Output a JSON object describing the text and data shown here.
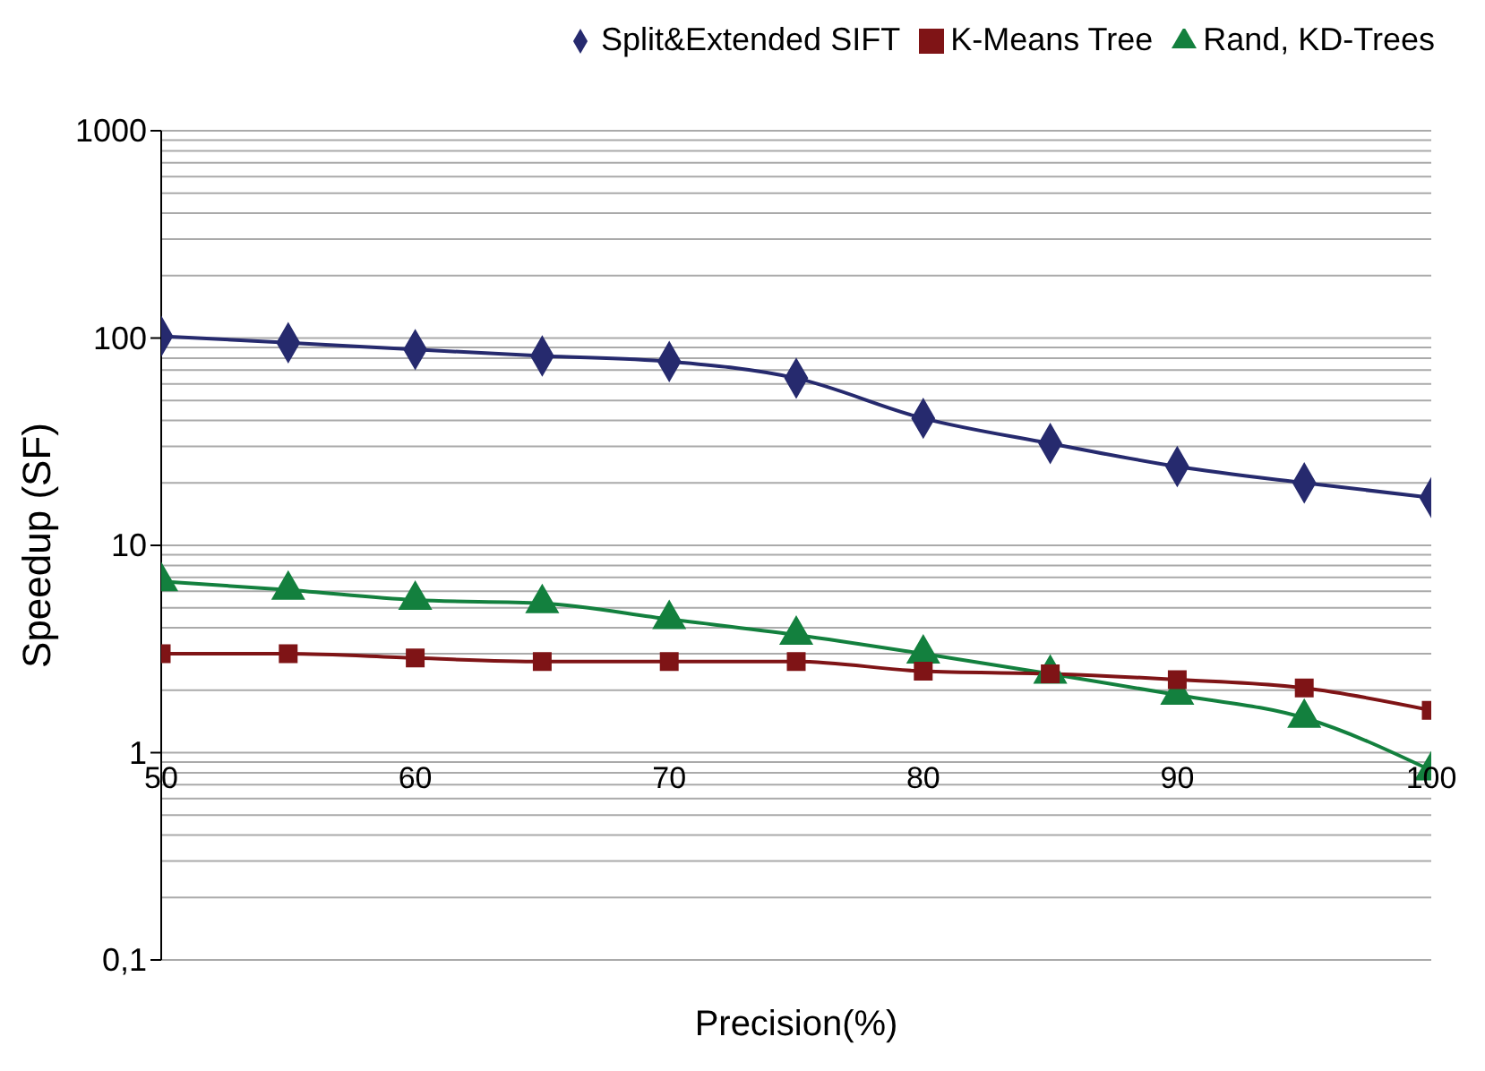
{
  "chart_data": {
    "type": "line",
    "xlabel": "Precision(%)",
    "ylabel": "Speedup (SF)",
    "log": "y",
    "grid": "y",
    "legend": "top right",
    "line_style": "solid",
    "x": [
      50,
      55,
      60,
      65,
      70,
      75,
      80,
      85,
      90,
      95,
      100
    ],
    "xlim": [
      50,
      100
    ],
    "xticks": [
      50,
      60,
      70,
      80,
      90,
      100
    ],
    "ylim": [
      0.1,
      1000
    ],
    "yticks": [
      {
        "value": 0.1,
        "label": "0,1"
      },
      {
        "value": 0.2,
        "label": null
      },
      {
        "value": 0.3,
        "label": null
      },
      {
        "value": 0.4,
        "label": null
      },
      {
        "value": 0.5,
        "label": null
      },
      {
        "value": 0.6,
        "label": null
      },
      {
        "value": 0.7,
        "label": null
      },
      {
        "value": 0.8,
        "label": null
      },
      {
        "value": 0.9,
        "label": null
      },
      1,
      {
        "value": 2,
        "label": null
      },
      {
        "value": 3,
        "label": null
      },
      {
        "value": 4,
        "label": null
      },
      {
        "value": 5,
        "label": null
      },
      {
        "value": 6,
        "label": null
      },
      {
        "value": 7,
        "label": null
      },
      {
        "value": 8,
        "label": null
      },
      {
        "value": 9,
        "label": null
      },
      10,
      {
        "value": 20,
        "label": null
      },
      {
        "value": 30,
        "label": null
      },
      {
        "value": 40,
        "label": null
      },
      {
        "value": 50,
        "label": null
      },
      {
        "value": 60,
        "label": null
      },
      {
        "value": 70,
        "label": null
      },
      {
        "value": 80,
        "label": null
      },
      {
        "value": 90,
        "label": null
      },
      100,
      {
        "value": 200,
        "label": null
      },
      {
        "value": 300,
        "label": null
      },
      {
        "value": 400,
        "label": null
      },
      {
        "value": 500,
        "label": null
      },
      {
        "value": 600,
        "label": null
      },
      {
        "value": 700,
        "label": null
      },
      {
        "value": 800,
        "label": null
      },
      {
        "value": 900,
        "label": null
      },
      1000
    ],
    "series": [
      {
        "name": "Split&Extended SIFT",
        "color": "#262a6e",
        "marker": "diamond",
        "values": [
          102,
          95,
          88,
          82,
          77,
          64,
          41,
          31,
          24,
          20,
          17
        ]
      },
      {
        "name": "K-Means Tree",
        "color": "#7f1416",
        "marker": "square",
        "values": [
          3.0,
          3.0,
          2.86,
          2.75,
          2.75,
          2.75,
          2.47,
          2.4,
          2.25,
          2.05,
          1.6
        ]
      },
      {
        "name": "Rand, KD-Trees",
        "color": "#13803e",
        "marker": "triangle",
        "values": [
          6.7,
          6.1,
          5.45,
          5.25,
          4.4,
          3.7,
          3.0,
          2.4,
          1.9,
          1.47,
          0.82
        ]
      }
    ]
  }
}
